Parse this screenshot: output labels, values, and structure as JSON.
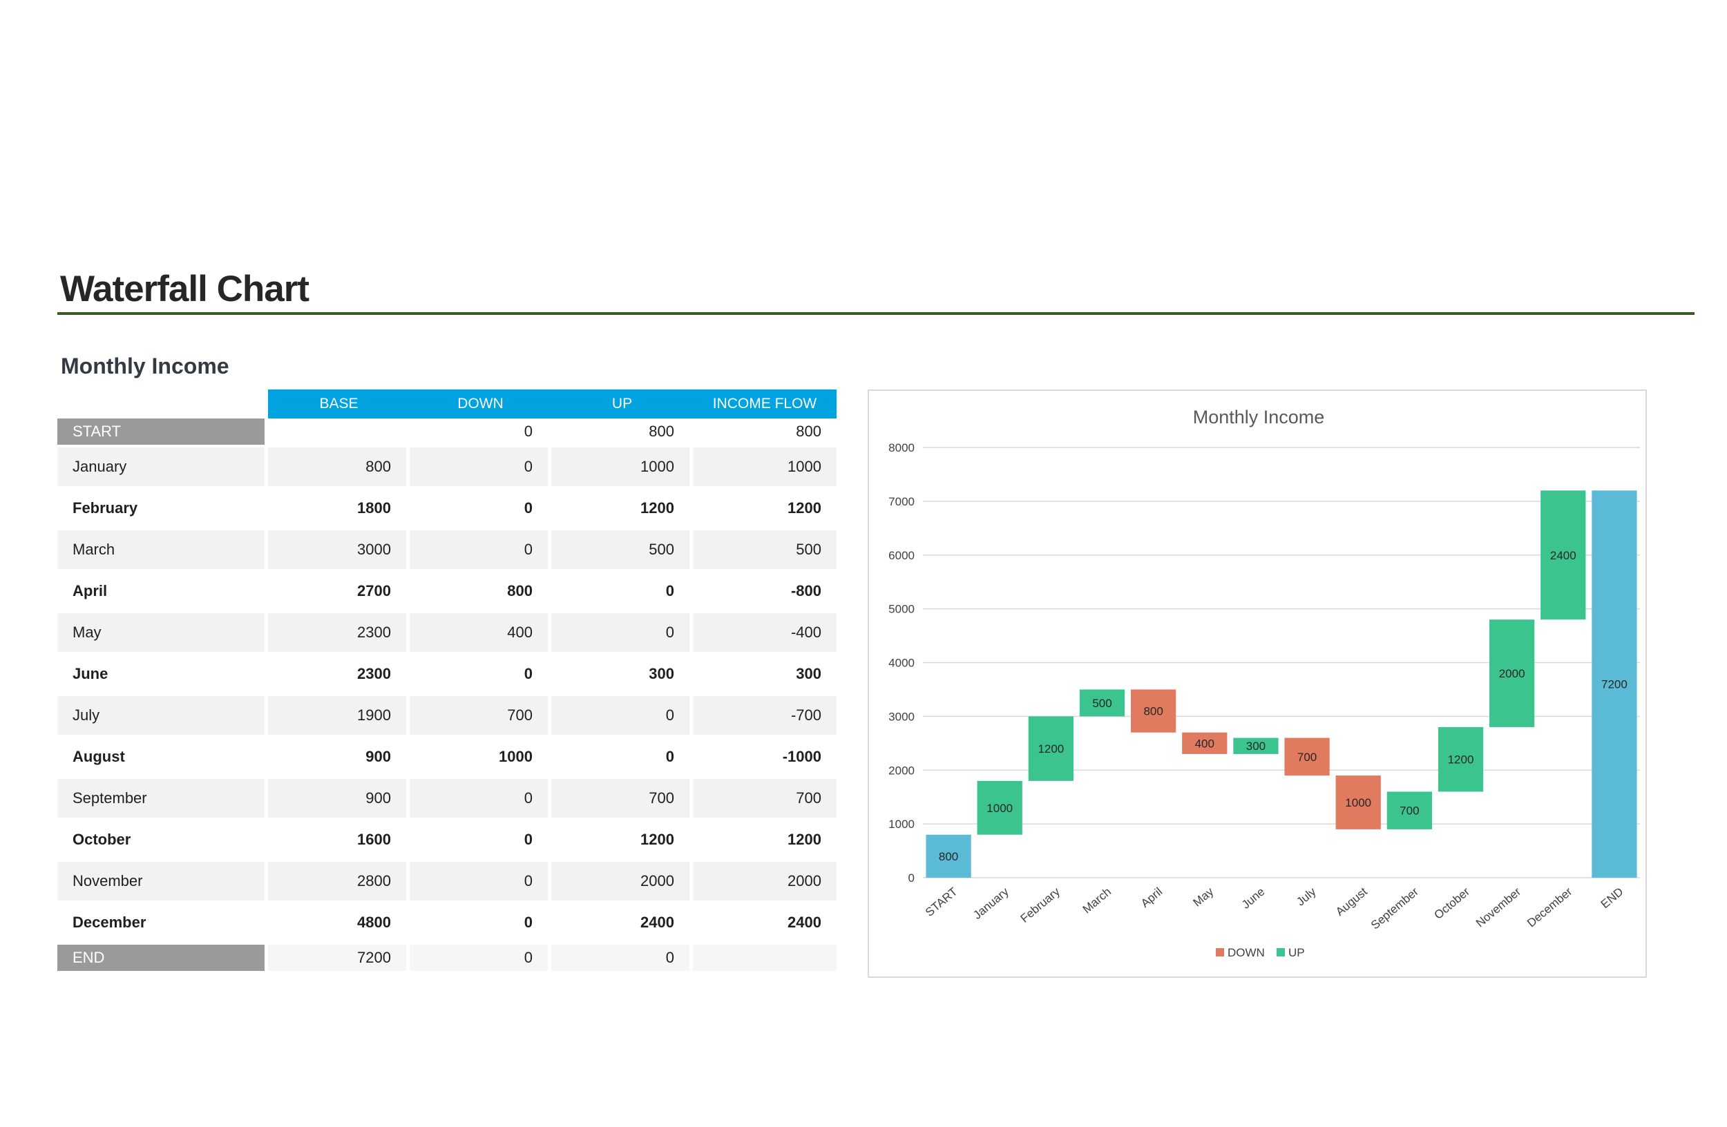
{
  "title": "Waterfall Chart",
  "section_title": "Monthly Income",
  "table": {
    "headers": [
      "BASE",
      "DOWN",
      "UP",
      "INCOME FLOW"
    ],
    "rows": [
      {
        "label": "START",
        "base": "",
        "down": "0",
        "up": "800",
        "flow": "800"
      },
      {
        "label": "January",
        "base": "800",
        "down": "0",
        "up": "1000",
        "flow": "1000"
      },
      {
        "label": "February",
        "base": "1800",
        "down": "0",
        "up": "1200",
        "flow": "1200"
      },
      {
        "label": "March",
        "base": "3000",
        "down": "0",
        "up": "500",
        "flow": "500"
      },
      {
        "label": "April",
        "base": "2700",
        "down": "800",
        "up": "0",
        "flow": "-800"
      },
      {
        "label": "May",
        "base": "2300",
        "down": "400",
        "up": "0",
        "flow": "-400"
      },
      {
        "label": "June",
        "base": "2300",
        "down": "0",
        "up": "300",
        "flow": "300"
      },
      {
        "label": "July",
        "base": "1900",
        "down": "700",
        "up": "0",
        "flow": "-700"
      },
      {
        "label": "August",
        "base": "900",
        "down": "1000",
        "up": "0",
        "flow": "-1000"
      },
      {
        "label": "September",
        "base": "900",
        "down": "0",
        "up": "700",
        "flow": "700"
      },
      {
        "label": "October",
        "base": "1600",
        "down": "0",
        "up": "1200",
        "flow": "1200"
      },
      {
        "label": "November",
        "base": "2800",
        "down": "0",
        "up": "2000",
        "flow": "2000"
      },
      {
        "label": "December",
        "base": "4800",
        "down": "0",
        "up": "2400",
        "flow": "2400"
      },
      {
        "label": "END",
        "base": "7200",
        "down": "0",
        "up": "0",
        "flow": ""
      }
    ]
  },
  "chart_data": {
    "type": "bar",
    "title": "Monthly Income",
    "categories": [
      "START",
      "January",
      "February",
      "March",
      "April",
      "May",
      "June",
      "July",
      "August",
      "September",
      "October",
      "November",
      "December",
      "END"
    ],
    "series": [
      {
        "name": "",
        "role": "base",
        "values": [
          0,
          800,
          1800,
          3000,
          2700,
          2300,
          2300,
          1900,
          900,
          900,
          1600,
          2800,
          4800,
          0
        ]
      },
      {
        "name": "DOWN",
        "values": [
          0,
          0,
          0,
          0,
          800,
          400,
          0,
          700,
          1000,
          0,
          0,
          0,
          0,
          0
        ]
      },
      {
        "name": "UP",
        "values": [
          800,
          1000,
          1200,
          500,
          0,
          0,
          300,
          0,
          0,
          700,
          1200,
          2000,
          2400,
          7200
        ]
      }
    ],
    "total_bars": [
      "START",
      "END"
    ],
    "ylim": [
      0,
      8000
    ],
    "yticks": [
      0,
      1000,
      2000,
      3000,
      4000,
      5000,
      6000,
      7000,
      8000
    ],
    "grid": true,
    "legend": "bottom",
    "colors": {
      "down": "#e07b5f",
      "up": "#3cc48f",
      "total": "#5bbad5"
    }
  }
}
